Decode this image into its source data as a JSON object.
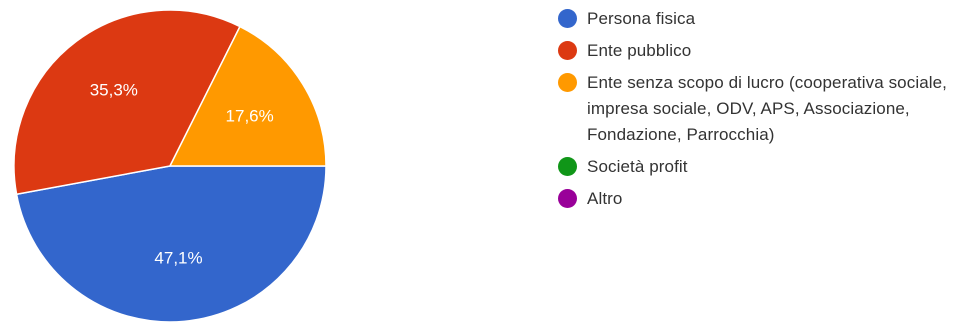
{
  "chart_data": {
    "type": "pie",
    "slices": [
      {
        "label": "Persona fisica",
        "value": 47.1,
        "display": "47,1%",
        "color": "#3366cc"
      },
      {
        "label": "Ente pubblico",
        "value": 35.3,
        "display": "35,3%",
        "color": "#dc3912"
      },
      {
        "label": "Ente senza scopo di lucro (cooperativa sociale, impresa sociale, ODV, APS, Associazione, Fondazione, Parrocchia)",
        "value": 17.6,
        "display": "17,6%",
        "color": "#ff9900"
      },
      {
        "label": "Società profit",
        "value": 0,
        "display": "",
        "color": "#109618"
      },
      {
        "label": "Altro",
        "value": 0,
        "display": "",
        "color": "#990099"
      }
    ],
    "legend_position": "right"
  }
}
